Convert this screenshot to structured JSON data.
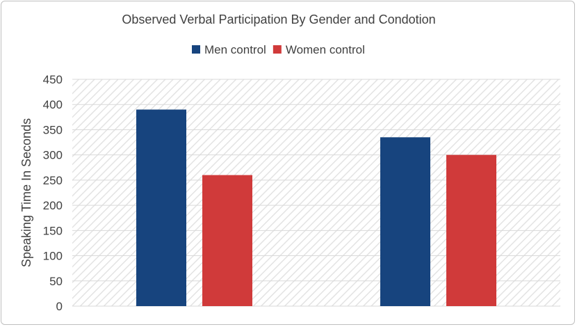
{
  "chart_data": {
    "type": "bar",
    "title": "Observed Verbal Participation By Gender and Condotion",
    "xlabel": "",
    "ylabel": "Speaking Time In Seconds",
    "categories": [
      "",
      ""
    ],
    "series": [
      {
        "name": "Men control",
        "color": "#17447e",
        "values": [
          390,
          335
        ]
      },
      {
        "name": "Women control",
        "color": "#d03a3a",
        "values": [
          260,
          300
        ]
      }
    ],
    "ylim": [
      0,
      450
    ],
    "yticks": [
      0,
      50,
      100,
      150,
      200,
      250,
      300,
      350,
      400,
      450
    ],
    "grid": true,
    "legend": "top"
  }
}
